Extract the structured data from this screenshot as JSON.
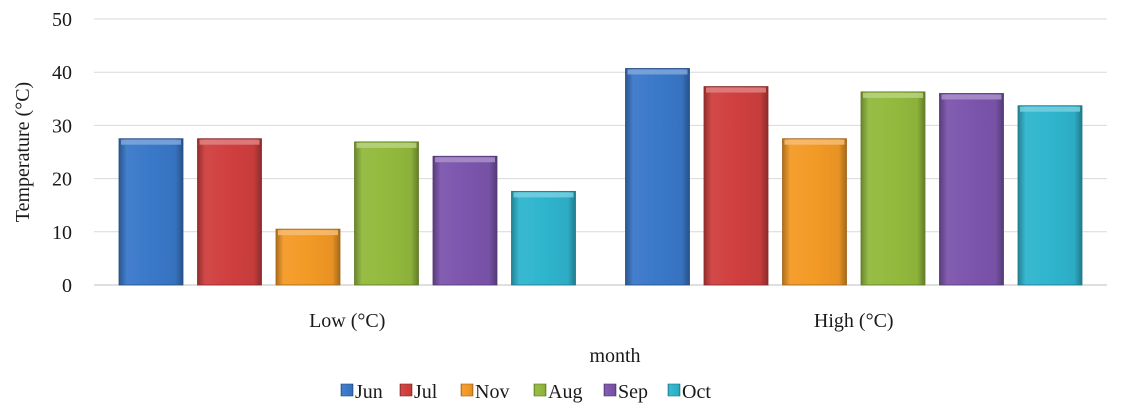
{
  "chart_data": {
    "type": "bar",
    "categories": [
      "Low (°C)",
      "High (°C)"
    ],
    "series": [
      {
        "name": "Jun",
        "values": [
          27.5,
          40.7
        ],
        "color": "#3A78C9"
      },
      {
        "name": "Jul",
        "values": [
          27.5,
          37.3
        ],
        "color": "#D03F3F"
      },
      {
        "name": "Nov",
        "values": [
          10.5,
          27.5
        ],
        "color": "#F39A26"
      },
      {
        "name": "Aug",
        "values": [
          26.9,
          36.3
        ],
        "color": "#93BA3D"
      },
      {
        "name": "Sep",
        "values": [
          24.2,
          36.0
        ],
        "color": "#7C55AD"
      },
      {
        "name": "Oct",
        "values": [
          17.6,
          33.7
        ],
        "color": "#2FB5CE"
      }
    ],
    "title": "",
    "xlabel": "month",
    "ylabel": "Temperature (°C)",
    "ylim": [
      0,
      50
    ],
    "yticks": [
      0,
      10,
      20,
      30,
      40,
      50
    ],
    "grid": true,
    "legend_position": "bottom"
  }
}
